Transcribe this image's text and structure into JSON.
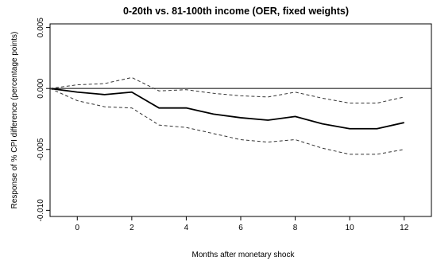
{
  "chart_data": {
    "type": "line",
    "title": "0-20th vs. 81-100th income (OER, fixed weights)",
    "xlabel": "Months after monetary shock",
    "ylabel": "Response of % CPI difference (percentage points)",
    "xlim": [
      -1,
      13
    ],
    "ylim": [
      -0.0105,
      0.0053
    ],
    "x_ticks": [
      0,
      2,
      4,
      6,
      8,
      10,
      12
    ],
    "x_tick_labels": [
      "0",
      "2",
      "4",
      "6",
      "8",
      "10",
      "12"
    ],
    "y_ticks": [
      -0.01,
      -0.005,
      0.0,
      0.005
    ],
    "y_tick_labels": [
      "-0.010",
      "-0.005",
      "0.000",
      "0.005"
    ],
    "reference_line_y": 0,
    "grid": false,
    "x": [
      -1,
      0,
      1,
      2,
      3,
      4,
      5,
      6,
      7,
      8,
      9,
      10,
      11,
      12
    ],
    "series": [
      {
        "role": "estimate",
        "style": "solid",
        "color": "#000000",
        "values": [
          0.0,
          -0.0003,
          -0.0005,
          -0.0003,
          -0.0016,
          -0.0016,
          -0.0021,
          -0.0024,
          -0.0026,
          -0.0023,
          -0.0029,
          -0.0033,
          -0.0033,
          -0.0028
        ]
      },
      {
        "role": "upper band",
        "style": "dashed",
        "color": "#333333",
        "values": [
          0.0,
          0.0003,
          0.0004,
          0.0009,
          -0.0002,
          -0.0001,
          -0.0004,
          -0.0006,
          -0.0007,
          -0.0003,
          -0.0008,
          -0.0012,
          -0.0012,
          -0.0007
        ]
      },
      {
        "role": "lower band",
        "style": "dashed",
        "color": "#333333",
        "values": [
          0.0,
          -0.001,
          -0.0015,
          -0.0016,
          -0.003,
          -0.0032,
          -0.0037,
          -0.0042,
          -0.0044,
          -0.0042,
          -0.0049,
          -0.0054,
          -0.0054,
          -0.005
        ]
      }
    ]
  }
}
